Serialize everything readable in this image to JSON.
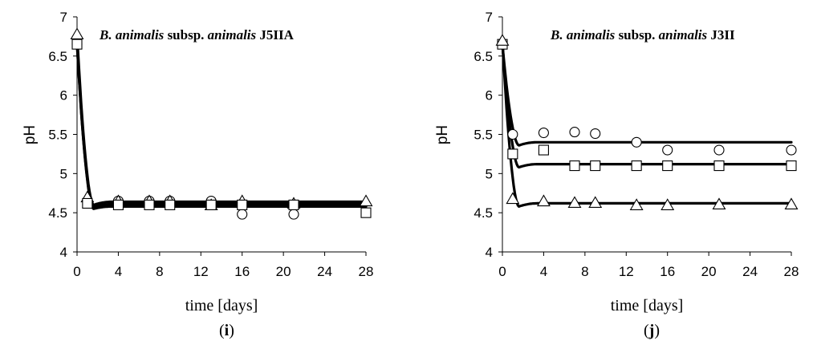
{
  "chart_data": [
    {
      "type": "scatter",
      "panel_label": "(i)",
      "panel_letter": "i",
      "title_parts": [
        {
          "text": "B. animalis",
          "italic": true
        },
        {
          "text": " subsp. ",
          "italic": false
        },
        {
          "text": "animalis",
          "italic": true
        },
        {
          "text": " J5IIA",
          "italic": false
        }
      ],
      "xlabel": "time [days]",
      "ylabel": "pH",
      "xlim": [
        0,
        28
      ],
      "ylim": [
        4,
        7
      ],
      "xticks": [
        0,
        4,
        8,
        12,
        16,
        20,
        24,
        28
      ],
      "xtick_labels": [
        "0",
        "4",
        "8",
        "12",
        "16",
        "20",
        "24",
        "28"
      ],
      "yticks": [
        4,
        4.5,
        5,
        5.5,
        6,
        6.5,
        7
      ],
      "ytick_labels": [
        "4",
        "4.5",
        "5",
        "5.5",
        "6",
        "6.5",
        "7"
      ],
      "grid": false,
      "legend": "none",
      "series": [
        {
          "marker": "circle",
          "x": [
            0,
            1,
            4,
            7,
            9,
            13,
            16,
            21
          ],
          "y": [
            6.65,
            4.65,
            4.65,
            4.65,
            4.65,
            4.65,
            4.48,
            4.48
          ],
          "fit": {
            "start": 6.65,
            "plateau": 4.58,
            "min": 4.55,
            "min_at": 1.6
          }
        },
        {
          "marker": "triangle",
          "x": [
            0,
            1,
            4,
            7,
            9,
            13,
            16,
            21,
            28
          ],
          "y": [
            6.78,
            4.7,
            4.65,
            4.65,
            4.65,
            4.6,
            4.65,
            4.62,
            4.65
          ],
          "fit": {
            "start": 6.78,
            "plateau": 4.64,
            "min": 4.6,
            "min_at": 1.6
          }
        },
        {
          "marker": "square",
          "x": [
            0,
            1,
            4,
            7,
            9,
            13,
            16,
            21,
            28
          ],
          "y": [
            6.65,
            4.62,
            4.6,
            4.6,
            4.6,
            4.6,
            4.6,
            4.6,
            4.5
          ],
          "fit": {
            "start": 6.65,
            "plateau": 4.61,
            "min": 4.57,
            "min_at": 1.6
          }
        }
      ]
    },
    {
      "type": "scatter",
      "panel_label": "(j)",
      "panel_letter": "j",
      "title_parts": [
        {
          "text": "B. animalis",
          "italic": true
        },
        {
          "text": " subsp. ",
          "italic": false
        },
        {
          "text": "animalis",
          "italic": true
        },
        {
          "text": " J3II",
          "italic": false
        }
      ],
      "xlabel": "time [days]",
      "ylabel": "pH",
      "xlim": [
        0,
        28
      ],
      "ylim": [
        4,
        7
      ],
      "xticks": [
        0,
        4,
        8,
        12,
        16,
        20,
        24,
        28
      ],
      "xtick_labels": [
        "0",
        "4",
        "8",
        "12",
        "16",
        "20",
        "24",
        "28"
      ],
      "yticks": [
        4,
        4.5,
        5,
        5.5,
        6,
        6.5,
        7
      ],
      "ytick_labels": [
        "4",
        "4.5",
        "5",
        "5.5",
        "6",
        "6.5",
        "7"
      ],
      "grid": false,
      "legend": "none",
      "series": [
        {
          "marker": "circle",
          "x": [
            0,
            1,
            4,
            7,
            9,
            13,
            16,
            21,
            28
          ],
          "y": [
            6.65,
            5.5,
            5.52,
            5.53,
            5.51,
            5.4,
            5.3,
            5.3,
            5.3
          ],
          "fit": {
            "start": 6.65,
            "plateau": 5.4,
            "min": 5.36,
            "min_at": 1.6
          }
        },
        {
          "marker": "square",
          "x": [
            0,
            1,
            4,
            7,
            9,
            13,
            16,
            21,
            28
          ],
          "y": [
            6.65,
            5.25,
            5.3,
            5.1,
            5.1,
            5.1,
            5.1,
            5.1,
            5.1
          ],
          "fit": {
            "start": 6.65,
            "plateau": 5.12,
            "min": 5.08,
            "min_at": 1.6
          }
        },
        {
          "marker": "triangle",
          "x": [
            0,
            1,
            4,
            7,
            9,
            13,
            16,
            21,
            28
          ],
          "y": [
            6.7,
            4.68,
            4.65,
            4.63,
            4.63,
            4.6,
            4.6,
            4.61,
            4.61
          ],
          "fit": {
            "start": 6.7,
            "plateau": 4.62,
            "min": 4.58,
            "min_at": 1.6
          }
        }
      ]
    }
  ]
}
